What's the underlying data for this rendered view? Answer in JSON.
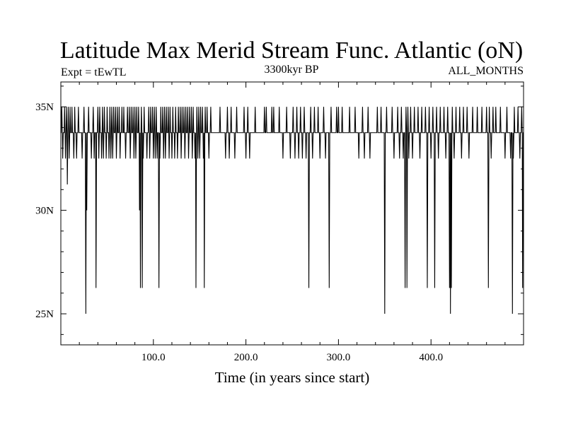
{
  "chart_data": {
    "type": "line",
    "title": "Latitude Max Merid Stream Func. Atlantic (oN)",
    "subtitle_left": "Expt = tEwTL",
    "subtitle_center": "3300kyr BP",
    "subtitle_right": "ALL_MONTHS",
    "xlabel": "Time (in years since start)",
    "ylabel": "",
    "xlim": [
      0,
      500
    ],
    "ylim": [
      23.5,
      36.2
    ],
    "x_ticks": [
      {
        "value": 100,
        "label": "100.0"
      },
      {
        "value": 200,
        "label": "200.0"
      },
      {
        "value": 300,
        "label": "300.0"
      },
      {
        "value": 400,
        "label": "400.0"
      }
    ],
    "y_ticks": [
      {
        "value": 25,
        "label": "25N"
      },
      {
        "value": 30,
        "label": "30N"
      },
      {
        "value": 35,
        "label": "35N"
      }
    ],
    "baseline": 33.75,
    "levels": [
      25.0,
      26.25,
      27.5,
      28.75,
      30.0,
      31.25,
      32.5,
      33.75,
      35.0
    ],
    "grid": false,
    "series": [
      {
        "color": "#000000",
        "events": [
          [
            1,
            35
          ],
          [
            2,
            32.5
          ],
          [
            3,
            33.75
          ],
          [
            4,
            35
          ],
          [
            5,
            32.5
          ],
          [
            6,
            35
          ],
          [
            7,
            31.25
          ],
          [
            8,
            35
          ],
          [
            9,
            32.5
          ],
          [
            10,
            35
          ],
          [
            11,
            33.75
          ],
          [
            12,
            35
          ],
          [
            14,
            32.5
          ],
          [
            15,
            35
          ],
          [
            17,
            32.5
          ],
          [
            19,
            35
          ],
          [
            21,
            33.75
          ],
          [
            23,
            32.5
          ],
          [
            25,
            35
          ],
          [
            27,
            25.0
          ],
          [
            28,
            30.0
          ],
          [
            30,
            35
          ],
          [
            33,
            32.5
          ],
          [
            35,
            35
          ],
          [
            36,
            32.5
          ],
          [
            37,
            33.75
          ],
          [
            38,
            26.25
          ],
          [
            40,
            35
          ],
          [
            41,
            32.5
          ],
          [
            42,
            35
          ],
          [
            43,
            33.75
          ],
          [
            44,
            32.5
          ],
          [
            45,
            35
          ],
          [
            46,
            32.5
          ],
          [
            47,
            35
          ],
          [
            48,
            33.75
          ],
          [
            49,
            32.5
          ],
          [
            50,
            35
          ],
          [
            51,
            33.75
          ],
          [
            52,
            32.5
          ],
          [
            53,
            35
          ],
          [
            54,
            32.5
          ],
          [
            55,
            35
          ],
          [
            56,
            32.5
          ],
          [
            57,
            35
          ],
          [
            58,
            33.75
          ],
          [
            59,
            35
          ],
          [
            60,
            32.5
          ],
          [
            61,
            35
          ],
          [
            62,
            33.75
          ],
          [
            63,
            35
          ],
          [
            64,
            32.5
          ],
          [
            66,
            35
          ],
          [
            67,
            33.75
          ],
          [
            68,
            35
          ],
          [
            70,
            32.5
          ],
          [
            72,
            35
          ],
          [
            73,
            33.75
          ],
          [
            74,
            35
          ],
          [
            75,
            32.5
          ],
          [
            76,
            35
          ],
          [
            77,
            33.75
          ],
          [
            78,
            35
          ],
          [
            79,
            32.5
          ],
          [
            80,
            35
          ],
          [
            81,
            32.5
          ],
          [
            82,
            35
          ],
          [
            83,
            33.75
          ],
          [
            84,
            35
          ],
          [
            85,
            30.0
          ],
          [
            86,
            26.25
          ],
          [
            87,
            35
          ],
          [
            88,
            26.25
          ],
          [
            89,
            32.5
          ],
          [
            90,
            35
          ],
          [
            93,
            32.5
          ],
          [
            95,
            35
          ],
          [
            96,
            32.5
          ],
          [
            97,
            35
          ],
          [
            98,
            33.75
          ],
          [
            99,
            35
          ],
          [
            100,
            32.5
          ],
          [
            101,
            35
          ],
          [
            102,
            32.5
          ],
          [
            103,
            35
          ],
          [
            104,
            32.5
          ],
          [
            106,
            26.25
          ],
          [
            107,
            32.5
          ],
          [
            108,
            35
          ],
          [
            109,
            33.75
          ],
          [
            110,
            35
          ],
          [
            111,
            32.5
          ],
          [
            112,
            35
          ],
          [
            113,
            32.5
          ],
          [
            114,
            35
          ],
          [
            115,
            33.75
          ],
          [
            116,
            35
          ],
          [
            117,
            32.5
          ],
          [
            118,
            35
          ],
          [
            119,
            33.75
          ],
          [
            120,
            32.5
          ],
          [
            121,
            35
          ],
          [
            122,
            33.75
          ],
          [
            123,
            32.5
          ],
          [
            124,
            35
          ],
          [
            125,
            33.75
          ],
          [
            126,
            32.5
          ],
          [
            127,
            35
          ],
          [
            128,
            33.75
          ],
          [
            129,
            35
          ],
          [
            130,
            32.5
          ],
          [
            131,
            35
          ],
          [
            132,
            33.75
          ],
          [
            133,
            35
          ],
          [
            134,
            32.5
          ],
          [
            135,
            35
          ],
          [
            136,
            33.75
          ],
          [
            137,
            35
          ],
          [
            138,
            32.5
          ],
          [
            139,
            35
          ],
          [
            140,
            33.75
          ],
          [
            141,
            35
          ],
          [
            142,
            32.5
          ],
          [
            143,
            35
          ],
          [
            145,
            32.5
          ],
          [
            146,
            26.25
          ],
          [
            147,
            35
          ],
          [
            148,
            32.5
          ],
          [
            149,
            35
          ],
          [
            150,
            32.5
          ],
          [
            151,
            35
          ],
          [
            152,
            33.75
          ],
          [
            153,
            35
          ],
          [
            154,
            32.5
          ],
          [
            155,
            26.25
          ],
          [
            156,
            35
          ],
          [
            157,
            33.75
          ],
          [
            158,
            35
          ],
          [
            160,
            32.5
          ],
          [
            162,
            35
          ],
          [
            172,
            35
          ],
          [
            178,
            32.5
          ],
          [
            180,
            35
          ],
          [
            182,
            32.5
          ],
          [
            184,
            35
          ],
          [
            188,
            32.5
          ],
          [
            190,
            35
          ],
          [
            198,
            35
          ],
          [
            200,
            32.5
          ],
          [
            202,
            35
          ],
          [
            204,
            32.5
          ],
          [
            210,
            35
          ],
          [
            220,
            35
          ],
          [
            222,
            35
          ],
          [
            228,
            35
          ],
          [
            230,
            35
          ],
          [
            236,
            35
          ],
          [
            240,
            32.5
          ],
          [
            244,
            35
          ],
          [
            248,
            32.5
          ],
          [
            251,
            35
          ],
          [
            253,
            32.5
          ],
          [
            255,
            35
          ],
          [
            257,
            32.5
          ],
          [
            259,
            35
          ],
          [
            261,
            32.5
          ],
          [
            263,
            35
          ],
          [
            265,
            32.5
          ],
          [
            268,
            26.25
          ],
          [
            270,
            35
          ],
          [
            272,
            32.5
          ],
          [
            274,
            35
          ],
          [
            276,
            33.75
          ],
          [
            278,
            35
          ],
          [
            280,
            32.5
          ],
          [
            284,
            35
          ],
          [
            286,
            32.5
          ],
          [
            290,
            26.25
          ],
          [
            292,
            35
          ],
          [
            298,
            35
          ],
          [
            300,
            35
          ],
          [
            304,
            35
          ],
          [
            312,
            35
          ],
          [
            318,
            35
          ],
          [
            322,
            32.5
          ],
          [
            326,
            35
          ],
          [
            328,
            32.5
          ],
          [
            332,
            35
          ],
          [
            334,
            32.5
          ],
          [
            342,
            35
          ],
          [
            346,
            35
          ],
          [
            350,
            25.0
          ],
          [
            352,
            35
          ],
          [
            354,
            33.75
          ],
          [
            358,
            35
          ],
          [
            360,
            32.5
          ],
          [
            364,
            35
          ],
          [
            366,
            32.5
          ],
          [
            368,
            35
          ],
          [
            370,
            32.5
          ],
          [
            372,
            26.25
          ],
          [
            373,
            35
          ],
          [
            374,
            26.25
          ],
          [
            375,
            35
          ],
          [
            376,
            32.5
          ],
          [
            378,
            35
          ],
          [
            380,
            32.5
          ],
          [
            382,
            35
          ],
          [
            384,
            33.75
          ],
          [
            386,
            35
          ],
          [
            388,
            32.5
          ],
          [
            390,
            35
          ],
          [
            392,
            33.75
          ],
          [
            394,
            35
          ],
          [
            396,
            26.25
          ],
          [
            398,
            35
          ],
          [
            400,
            32.5
          ],
          [
            402,
            35
          ],
          [
            404,
            26.25
          ],
          [
            406,
            35
          ],
          [
            408,
            32.5
          ],
          [
            410,
            35
          ],
          [
            412,
            33.75
          ],
          [
            414,
            35
          ],
          [
            416,
            32.5
          ],
          [
            418,
            35
          ],
          [
            420,
            26.25
          ],
          [
            421,
            25.0
          ],
          [
            422,
            26.25
          ],
          [
            423,
            35
          ],
          [
            425,
            32.5
          ],
          [
            427,
            35
          ],
          [
            429,
            33.75
          ],
          [
            431,
            35
          ],
          [
            433,
            32.5
          ],
          [
            435,
            35
          ],
          [
            437,
            33.75
          ],
          [
            439,
            35
          ],
          [
            441,
            32.5
          ],
          [
            445,
            35
          ],
          [
            450,
            35
          ],
          [
            455,
            35
          ],
          [
            460,
            35
          ],
          [
            462,
            26.25
          ],
          [
            463,
            35
          ],
          [
            465,
            32.5
          ],
          [
            467,
            35
          ],
          [
            470,
            35
          ],
          [
            475,
            35
          ],
          [
            480,
            32.5
          ],
          [
            482,
            35
          ],
          [
            484,
            33.75
          ],
          [
            486,
            32.5
          ],
          [
            488,
            25.0
          ],
          [
            489,
            32.5
          ],
          [
            490,
            35
          ],
          [
            492,
            33.75
          ],
          [
            494,
            35
          ],
          [
            496,
            32.5
          ],
          [
            498,
            35
          ],
          [
            499,
            26.25
          ]
        ]
      }
    ]
  }
}
